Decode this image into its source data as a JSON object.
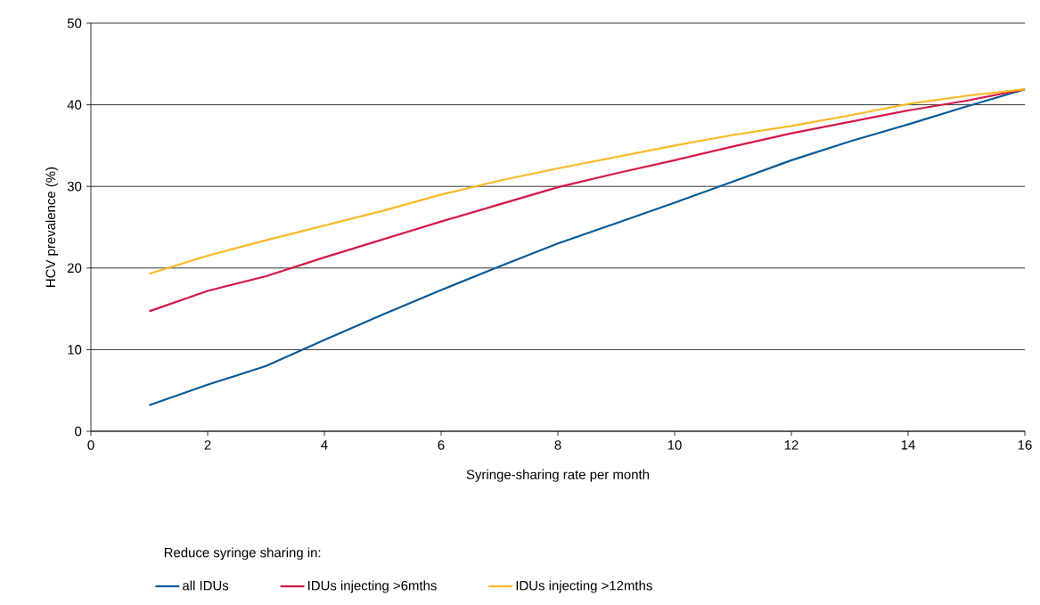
{
  "chart_data": {
    "type": "line",
    "xlabel": "Syringe-sharing rate per month",
    "ylabel": "HCV prevalence (%)",
    "legend_title": "Reduce syringe sharing in:",
    "legend": "bottom",
    "grid": "y",
    "marker": "none",
    "line_style": "solid",
    "xlim": [
      0,
      16
    ],
    "ylim": [
      0,
      50
    ],
    "xticks": [
      0,
      2,
      4,
      6,
      8,
      10,
      12,
      14,
      16
    ],
    "yticks": [
      0,
      10,
      20,
      30,
      40,
      50
    ],
    "x": [
      1,
      2,
      3,
      4,
      5,
      6,
      7,
      8,
      9,
      10,
      11,
      12,
      13,
      14,
      15,
      16
    ],
    "series": [
      {
        "name": "all IDUs",
        "color": "#0a5a96",
        "values": [
          3.2,
          5.7,
          8.0,
          11.2,
          14.3,
          17.3,
          20.2,
          23.0,
          25.5,
          28.0,
          30.6,
          33.2,
          35.5,
          37.6,
          39.8,
          41.9
        ]
      },
      {
        "name": "IDUs injecting >6mths",
        "color": "#d4184a",
        "values": [
          14.7,
          17.2,
          19.0,
          21.3,
          23.5,
          25.7,
          27.8,
          29.9,
          31.6,
          33.2,
          34.9,
          36.5,
          37.9,
          39.3,
          40.5,
          41.9
        ]
      },
      {
        "name": "IDUs injecting >12mths",
        "color": "#f9b824",
        "values": [
          19.3,
          21.5,
          23.4,
          25.2,
          27.0,
          29.0,
          30.7,
          32.2,
          33.6,
          35.0,
          36.3,
          37.4,
          38.7,
          40.1,
          41.1,
          41.9
        ]
      }
    ]
  }
}
